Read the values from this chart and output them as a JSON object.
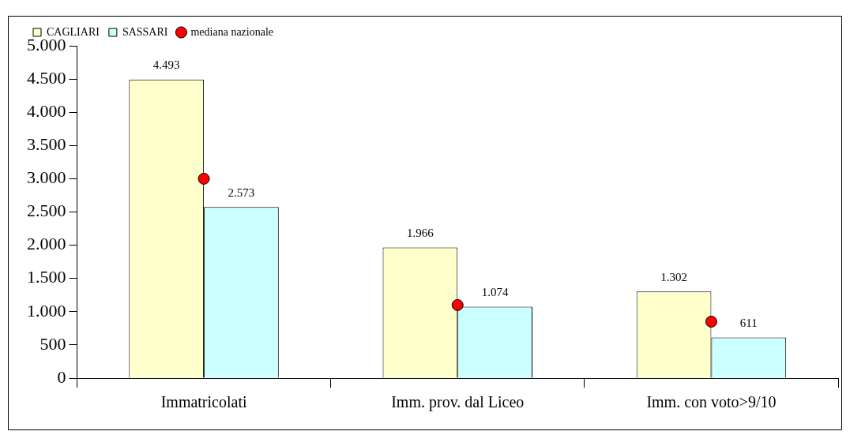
{
  "chart_data": {
    "type": "bar",
    "categories": [
      "Immatricolati",
      "Imm. prov. dal Liceo",
      "Imm. con voto>9/10"
    ],
    "series": [
      {
        "name": "CAGLIARI",
        "color": "#ffffcc",
        "values": [
          4493,
          1966,
          1302
        ],
        "value_labels": [
          "4.493",
          "1.966",
          "1.302"
        ]
      },
      {
        "name": "SASSARI",
        "color": "#ccffff",
        "values": [
          2573,
          1074,
          611
        ],
        "value_labels": [
          "2.573",
          "1.074",
          "611"
        ]
      },
      {
        "name": "mediana nazionale",
        "type": "scatter",
        "color": "#ff0000",
        "x": [
          "Immatricolati",
          "Imm. prov. dal Liceo",
          "Imm. con voto>9/10"
        ],
        "values": [
          3000,
          1100,
          850
        ]
      }
    ],
    "ylim": [
      0,
      5000
    ],
    "yticks": [
      {
        "value": 0,
        "label": "0"
      },
      {
        "value": 500,
        "label": "500"
      },
      {
        "value": 1000,
        "label": "1.000"
      },
      {
        "value": 1500,
        "label": "1.500"
      },
      {
        "value": 2000,
        "label": "2.000"
      },
      {
        "value": 2500,
        "label": "2.500"
      },
      {
        "value": 3000,
        "label": "3.000"
      },
      {
        "value": 3500,
        "label": "3.500"
      },
      {
        "value": 4000,
        "label": "4.000"
      },
      {
        "value": 4500,
        "label": "4.500"
      },
      {
        "value": 5000,
        "label": "5.000"
      }
    ],
    "grid": false,
    "legend": "top",
    "marker": "circle"
  }
}
